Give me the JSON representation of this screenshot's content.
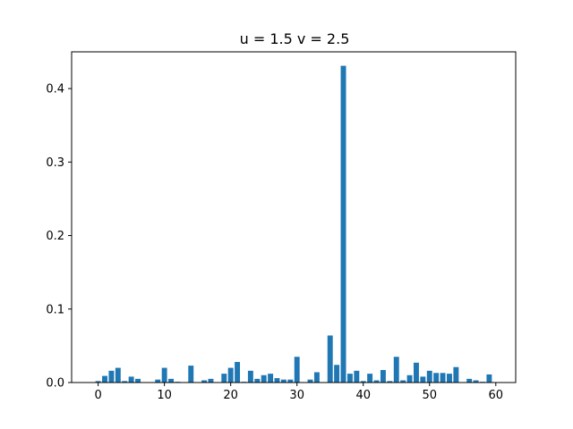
{
  "chart_data": {
    "type": "bar",
    "title": "u = 1.5  v = 2.5",
    "xlabel": "",
    "ylabel": "",
    "bar_color": "#1f77b4",
    "xlim": [
      -4,
      63
    ],
    "ylim": [
      0,
      0.45
    ],
    "xticks": [
      "0",
      "10",
      "20",
      "30",
      "40",
      "50",
      "60"
    ],
    "yticks": [
      "0.0",
      "0.1",
      "0.2",
      "0.3",
      "0.4"
    ],
    "grid": false,
    "categories": [
      0,
      1,
      2,
      3,
      4,
      5,
      6,
      7,
      8,
      9,
      10,
      11,
      12,
      13,
      14,
      15,
      16,
      17,
      18,
      19,
      20,
      21,
      22,
      23,
      24,
      25,
      26,
      27,
      28,
      29,
      30,
      31,
      32,
      33,
      34,
      35,
      36,
      37,
      38,
      39,
      40,
      41,
      42,
      43,
      44,
      45,
      46,
      47,
      48,
      49,
      50,
      51,
      52,
      53,
      54,
      55,
      56,
      57,
      58,
      59
    ],
    "values": [
      0.002,
      0.009,
      0.016,
      0.02,
      0.002,
      0.008,
      0.005,
      0.0,
      0.0,
      0.004,
      0.02,
      0.005,
      0.001,
      0.0,
      0.023,
      0.0,
      0.003,
      0.005,
      0.0,
      0.012,
      0.02,
      0.028,
      0.001,
      0.016,
      0.005,
      0.01,
      0.012,
      0.006,
      0.004,
      0.004,
      0.035,
      0.0,
      0.004,
      0.014,
      0.0,
      0.064,
      0.024,
      0.431,
      0.012,
      0.016,
      0.002,
      0.012,
      0.003,
      0.017,
      0.002,
      0.035,
      0.003,
      0.01,
      0.027,
      0.008,
      0.016,
      0.013,
      0.013,
      0.012,
      0.021,
      0.0,
      0.005,
      0.003,
      0.001,
      0.011
    ]
  }
}
